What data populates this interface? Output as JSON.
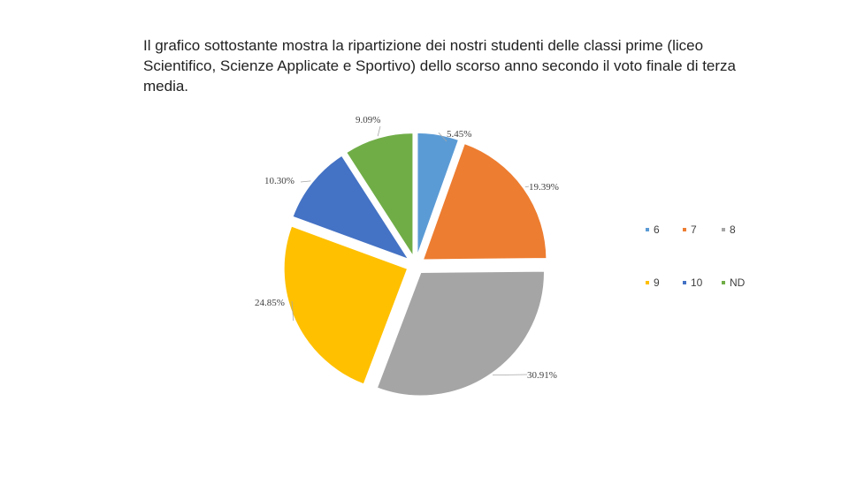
{
  "title": "Il grafico sottostante mostra la ripartizione dei nostri studenti delle classi prime (liceo Scientifico, Scienze Applicate e Sportivo) dello scorso anno secondo il voto finale di terza media.",
  "chart_data": {
    "type": "pie",
    "exploded": true,
    "legend_position": "right",
    "slices": [
      {
        "label": "6",
        "value": 5.45,
        "value_label": "5.45%",
        "color": "#5b9bd5"
      },
      {
        "label": "7",
        "value": 19.39,
        "value_label": "19.39%",
        "color": "#ed7d31"
      },
      {
        "label": "8",
        "value": 30.91,
        "value_label": "30.91%",
        "color": "#a5a5a5"
      },
      {
        "label": "9",
        "value": 24.85,
        "value_label": "24.85%",
        "color": "#ffc000"
      },
      {
        "label": "10",
        "value": 10.3,
        "value_label": "10.30%",
        "color": "#4472c4"
      },
      {
        "label": "ND",
        "value": 9.09,
        "value_label": "9.09%",
        "color": "#70ad47"
      }
    ]
  }
}
